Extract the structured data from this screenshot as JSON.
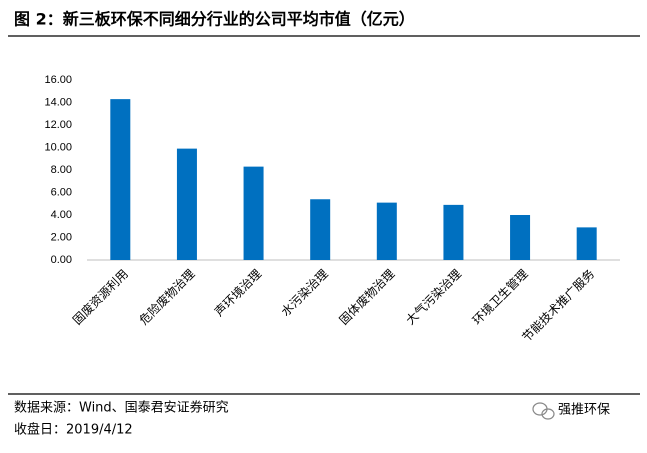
{
  "chart_data": {
    "type": "bar",
    "title": "图 2：新三板环保不同细分行业的公司平均市值（亿元）",
    "categories": [
      "固废资源利用",
      "危险废物治理",
      "声环境治理",
      "水污染治理",
      "固体废物治理",
      "大气污染治理",
      "环境卫生管理",
      "节能技术推广服务"
    ],
    "values": [
      14.3,
      9.9,
      8.3,
      5.4,
      5.1,
      4.9,
      4.0,
      2.9
    ],
    "color": "#0070c0",
    "ylim": [
      0,
      16
    ],
    "yticks": [
      {
        "value": 0,
        "label": "0.00"
      },
      {
        "value": 2,
        "label": "2.00"
      },
      {
        "value": 4,
        "label": "4.00"
      },
      {
        "value": 6,
        "label": "6.00"
      },
      {
        "value": 8,
        "label": "8.00"
      },
      {
        "value": 10,
        "label": "10.00"
      },
      {
        "value": 12,
        "label": "12.00"
      },
      {
        "value": 14,
        "label": "14.00"
      },
      {
        "value": 16,
        "label": "16.00"
      }
    ],
    "grid": false,
    "source": "数据来源：Wind、国泰君安证券研究",
    "date_note": "收盘日：2019/4/12",
    "watermark": "强推环保"
  }
}
